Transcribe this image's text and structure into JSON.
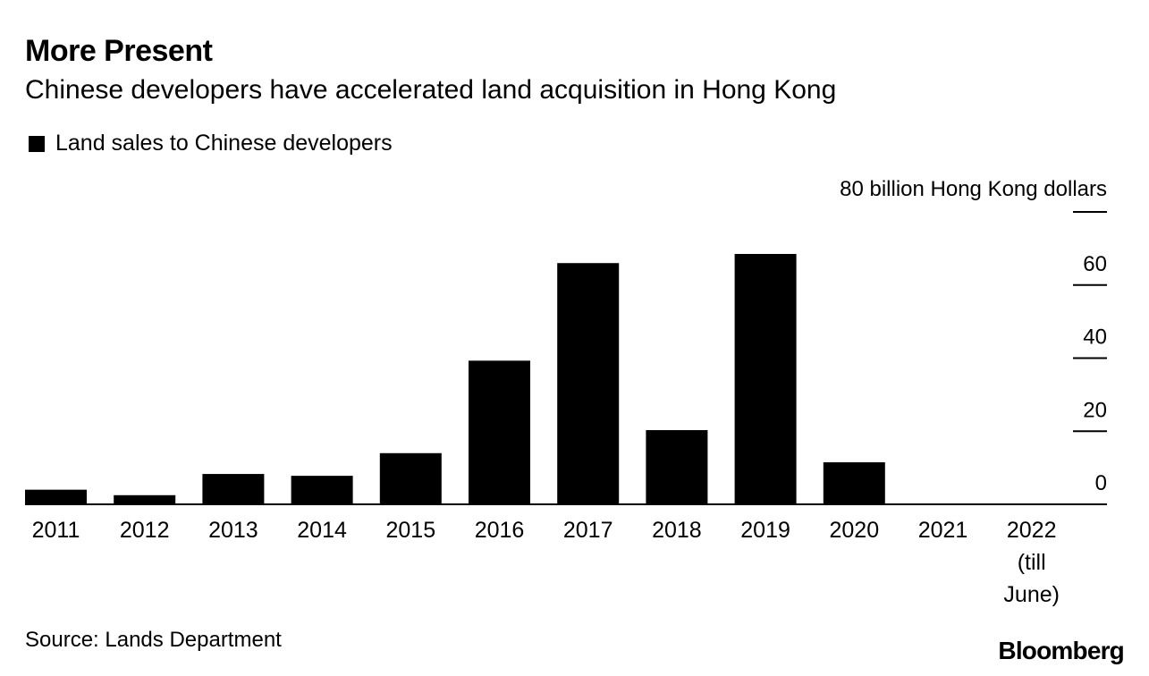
{
  "header": {
    "title": "More Present",
    "subtitle": "Chinese developers have accelerated land acquisition in Hong Kong"
  },
  "legend": {
    "label": "Land sales to Chinese developers",
    "color": "#000000"
  },
  "footer": {
    "source": "Source: Lands Department",
    "logo": "Bloomberg"
  },
  "chart_data": {
    "type": "bar",
    "title": "More Present",
    "subtitle": "Chinese developers have accelerated land acquisition in Hong Kong",
    "categories": [
      "2011",
      "2012",
      "2013",
      "2014",
      "2015",
      "2016",
      "2017",
      "2018",
      "2019",
      "2020",
      "2021",
      "2022 (till June)"
    ],
    "category_lines": [
      [
        "2011"
      ],
      [
        "2012"
      ],
      [
        "2013"
      ],
      [
        "2014"
      ],
      [
        "2015"
      ],
      [
        "2016"
      ],
      [
        "2017"
      ],
      [
        "2018"
      ],
      [
        "2019"
      ],
      [
        "2020"
      ],
      [
        "2021"
      ],
      [
        "2022",
        "(till",
        "June)"
      ]
    ],
    "series": [
      {
        "name": "Land sales to Chinese developers",
        "values": [
          4,
          2.5,
          8.3,
          7.8,
          14,
          39.3,
          66,
          20.3,
          68.5,
          11.5,
          0,
          0
        ]
      }
    ],
    "yunit": "80 billion Hong Kong dollars",
    "yticks": [
      "0",
      "20",
      "40",
      "60"
    ],
    "ylim": [
      0,
      80
    ],
    "axis_position": "right",
    "grid": false,
    "color": "#000000"
  }
}
